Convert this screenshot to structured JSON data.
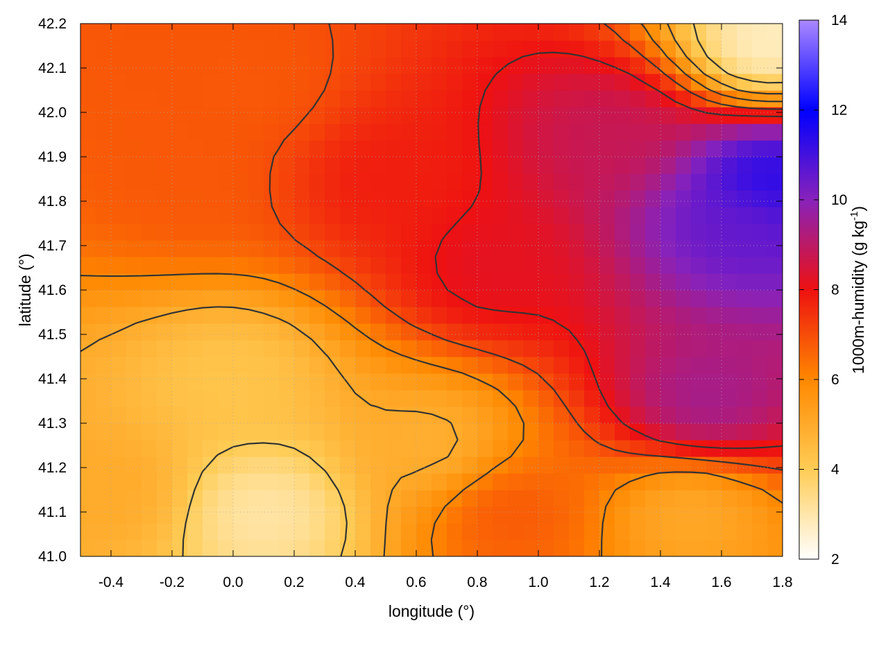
{
  "chart_data": {
    "type": "heatmap",
    "xlabel": "longitude (°)",
    "ylabel": "latitude (°)",
    "xlim": [
      -0.5,
      1.8
    ],
    "ylim": [
      41.0,
      42.2
    ],
    "x_ticks": [
      "-0.4",
      "-0.2",
      "0.0",
      "0.2",
      "0.4",
      "0.6",
      "0.8",
      "1.0",
      "1.2",
      "1.4",
      "1.6",
      "1.8"
    ],
    "y_ticks": [
      "41.0",
      "41.1",
      "41.2",
      "41.3",
      "41.4",
      "41.5",
      "41.6",
      "41.7",
      "41.8",
      "41.9",
      "42.0",
      "42.1",
      "42.2"
    ],
    "grid": true,
    "colorbar": {
      "label_main": "1000m-humidity (g kg",
      "label_sup": "-1",
      "label_end": ")",
      "range": [
        2,
        14
      ],
      "ticks": [
        "2",
        "4",
        "6",
        "8",
        "10",
        "12",
        "14"
      ],
      "stops": [
        {
          "value": 2,
          "color": "#ffffff"
        },
        {
          "value": 4,
          "color": "#ffcc55"
        },
        {
          "value": 6,
          "color": "#ff8800"
        },
        {
          "value": 8,
          "color": "#ee1111"
        },
        {
          "value": 10,
          "color": "#8822bb"
        },
        {
          "value": 12,
          "color": "#0000ff"
        },
        {
          "value": 14,
          "color": "#aa88ff"
        }
      ]
    },
    "field_centers": [
      {
        "lon": 0.85,
        "lat": 41.65,
        "value": 8.2
      },
      {
        "lon": 1.65,
        "lat": 41.75,
        "value": 10.5
      },
      {
        "lon": 1.75,
        "lat": 41.85,
        "value": 11.5
      },
      {
        "lon": 1.55,
        "lat": 41.35,
        "value": 9.5
      },
      {
        "lon": 1.25,
        "lat": 41.95,
        "value": 8.8
      },
      {
        "lon": 0.5,
        "lat": 41.85,
        "value": 7.8
      },
      {
        "lon": -0.15,
        "lat": 41.85,
        "value": 6.8
      },
      {
        "lon": 0.05,
        "lat": 42.05,
        "value": 6.8
      },
      {
        "lon": 0.1,
        "lat": 41.1,
        "value": 3.0
      },
      {
        "lon": 0.0,
        "lat": 41.4,
        "value": 4.2
      },
      {
        "lon": 1.75,
        "lat": 42.15,
        "value": 2.6
      },
      {
        "lon": 1.5,
        "lat": 41.1,
        "value": 5.0
      },
      {
        "lon": -0.4,
        "lat": 41.15,
        "value": 5.0
      },
      {
        "lon": 0.65,
        "lat": 41.25,
        "value": 4.8
      },
      {
        "lon": 0.9,
        "lat": 41.1,
        "value": 6.8
      }
    ],
    "contour_levels": [
      4,
      5,
      6,
      7,
      8
    ]
  }
}
